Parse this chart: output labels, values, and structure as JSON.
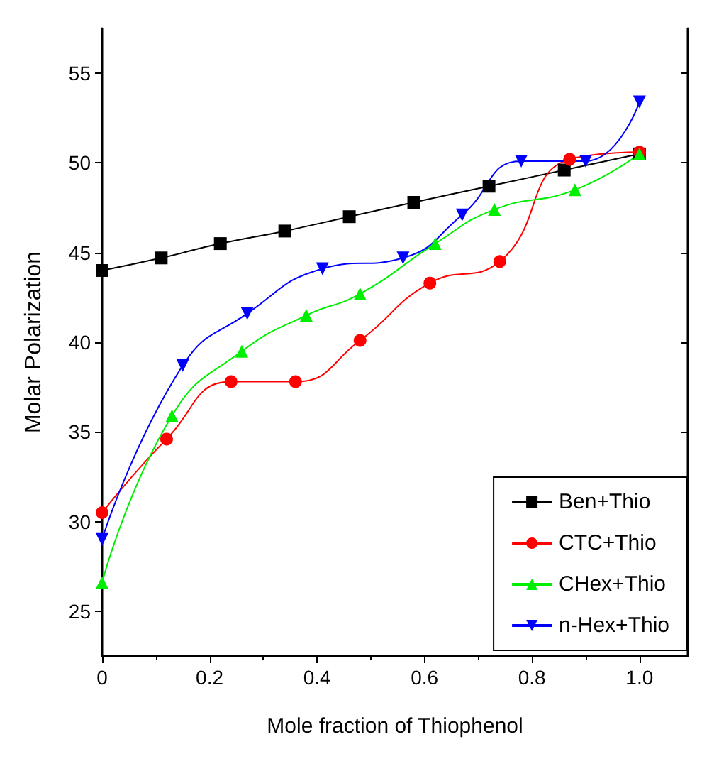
{
  "chart_data": {
    "type": "line",
    "xlabel": "Mole fraction of Thiophenol",
    "ylabel": "Molar Polarization",
    "xlim": [
      0,
      1.09
    ],
    "xticks": [
      0,
      {
        "value": 0.2,
        "label": "0.2"
      },
      {
        "value": 0.4,
        "label": "0.4"
      },
      {
        "value": 0.6,
        "label": "0.6"
      },
      {
        "value": 0.8,
        "label": "0.8"
      },
      {
        "value": 1.0,
        "label": "1.0"
      }
    ],
    "ylim": [
      22.5,
      57.5
    ],
    "yticks": [
      25,
      30,
      35,
      40,
      45,
      50,
      55
    ],
    "grid": false,
    "legend": "bottom right",
    "series": [
      {
        "name": "Ben+Thio",
        "color": "#000000",
        "marker": "square",
        "x": [
          0,
          0.11,
          0.22,
          0.34,
          0.46,
          0.58,
          0.72,
          0.86,
          1.0
        ],
        "values": [
          44.0,
          44.7,
          45.5,
          46.2,
          47.0,
          47.8,
          48.7,
          49.6,
          50.5
        ]
      },
      {
        "name": "CTC+Thio",
        "color": "#ff0000",
        "marker": "circle",
        "x": [
          0,
          0.12,
          0.24,
          0.36,
          0.48,
          0.61,
          0.74,
          0.87,
          1.0
        ],
        "values": [
          30.5,
          34.6,
          37.8,
          37.8,
          40.1,
          43.3,
          44.5,
          50.2,
          50.6
        ]
      },
      {
        "name": "CHex+Thio",
        "color": "#00ee00",
        "marker": "triangle",
        "x": [
          0,
          0.13,
          0.26,
          0.38,
          0.48,
          0.62,
          0.73,
          0.88,
          1.0
        ],
        "values": [
          26.6,
          35.9,
          39.5,
          41.5,
          42.7,
          45.5,
          47.4,
          48.5,
          50.5
        ]
      },
      {
        "name": "n-Hex+Thio",
        "color": "#0000ff",
        "marker": "triangle-down",
        "x": [
          0,
          0.15,
          0.27,
          0.41,
          0.56,
          0.67,
          0.78,
          0.9,
          1.0
        ],
        "values": [
          29.0,
          38.7,
          41.6,
          44.1,
          44.7,
          47.1,
          50.1,
          50.1,
          53.4
        ]
      }
    ]
  }
}
